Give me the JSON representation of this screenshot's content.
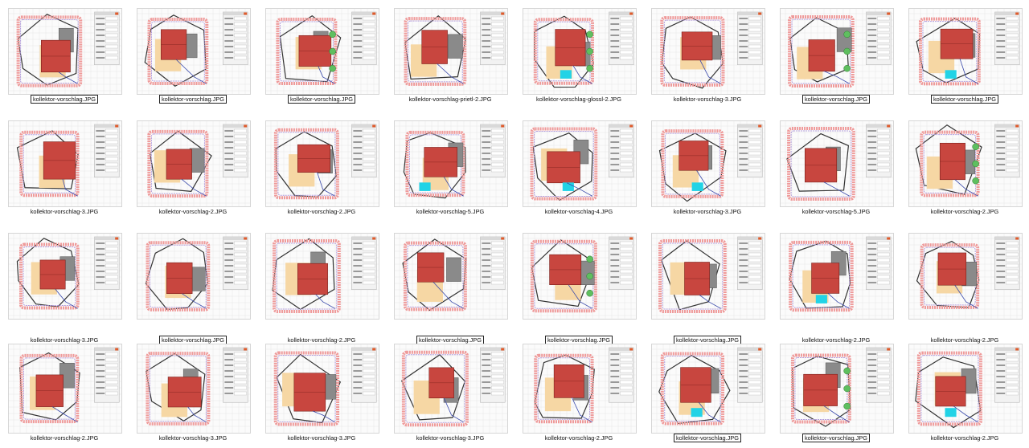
{
  "colors": {
    "roof_red": "#c8463f",
    "roof_outline": "#7a1f1a",
    "shade_gray": "#8a8a8a",
    "light_gray": "#c9c9c9",
    "sand": "#f6d7a4",
    "cyan": "#22d3e6",
    "collector_pink": "#ef9a9a",
    "collector_purple": "#b39ddb",
    "border_dark": "#333333",
    "blue_line": "#3949ab",
    "green_marker": "#5fbf5f",
    "panel_bg": "#f2f2f2"
  },
  "rows": [
    {
      "items": [
        {
          "label": "kollektor-vorschlag.JPG",
          "selected": true
        },
        {
          "label": "kollektor-vorschlag.JPG",
          "selected": true
        },
        {
          "label": "kollektor-vorschlag.JPG",
          "selected": true
        },
        {
          "label": "kollektor-vorschlag-prietl-2.JPG",
          "selected": false
        },
        {
          "label": "kollektor-vorschlag-glossl-2.JPG",
          "selected": false
        },
        {
          "label": "kollektor-vorschlag-3.JPG",
          "selected": false
        },
        {
          "label": "kollektor-vorschlag.JPG",
          "selected": true
        },
        {
          "label": "kollektor-vorschlag.JPG",
          "selected": true
        }
      ]
    },
    {
      "items": [
        {
          "label": "kollektor-vorschlag-3.JPG",
          "selected": false
        },
        {
          "label": "kollektor-vorschlag-2.JPG",
          "selected": false
        },
        {
          "label": "kollektor-vorschlag-2.JPG",
          "selected": false
        },
        {
          "label": "kollektor-vorschlag-5.JPG",
          "selected": false
        },
        {
          "label": "kollektor-vorschlag-4.JPG",
          "selected": false
        },
        {
          "label": "kollektor-vorschlag-3.JPG",
          "selected": false
        },
        {
          "label": "kollektor-vorschlag-5.JPG",
          "selected": false
        },
        {
          "label": "kollektor-vorschlag-2.JPG",
          "selected": false
        }
      ]
    },
    {
      "items": [
        {
          "label": "kollektor-vorschlag-3.JPG",
          "selected": false
        },
        {
          "label": "kollektor-vorschlag.JPG",
          "selected": true
        },
        {
          "label": "kollektor-vorschlag-2.JPG",
          "selected": false
        },
        {
          "label": "kollektor-vorschlag.JPG",
          "selected": true
        },
        {
          "label": "kollektor-vorschlag.JPG",
          "selected": true
        },
        {
          "label": "kollektor-vorschlag.JPG",
          "selected": true
        },
        {
          "label": "kollektor-vorschlag-2.JPG",
          "selected": false
        },
        {
          "label": "kollektor-vorschlag-2.JPG",
          "selected": false
        }
      ]
    },
    {
      "items": [
        {
          "label": "kollektor-vorschlag-2.JPG",
          "selected": false
        },
        {
          "label": "kollektor-vorschlag-3.JPG",
          "selected": false
        },
        {
          "label": "kollektor-vorschlag-3.JPG",
          "selected": false
        },
        {
          "label": "kollektor-vorschlag-3.JPG",
          "selected": false
        },
        {
          "label": "kollektor-vorschlag-2.JPG",
          "selected": false
        },
        {
          "label": "kollektor-vorschlag.JPG",
          "selected": true
        },
        {
          "label": "kollektor-vorschlag.JPG",
          "selected": true
        },
        {
          "label": "kollektor-vorschlag-2.JPG",
          "selected": false
        }
      ]
    }
  ]
}
